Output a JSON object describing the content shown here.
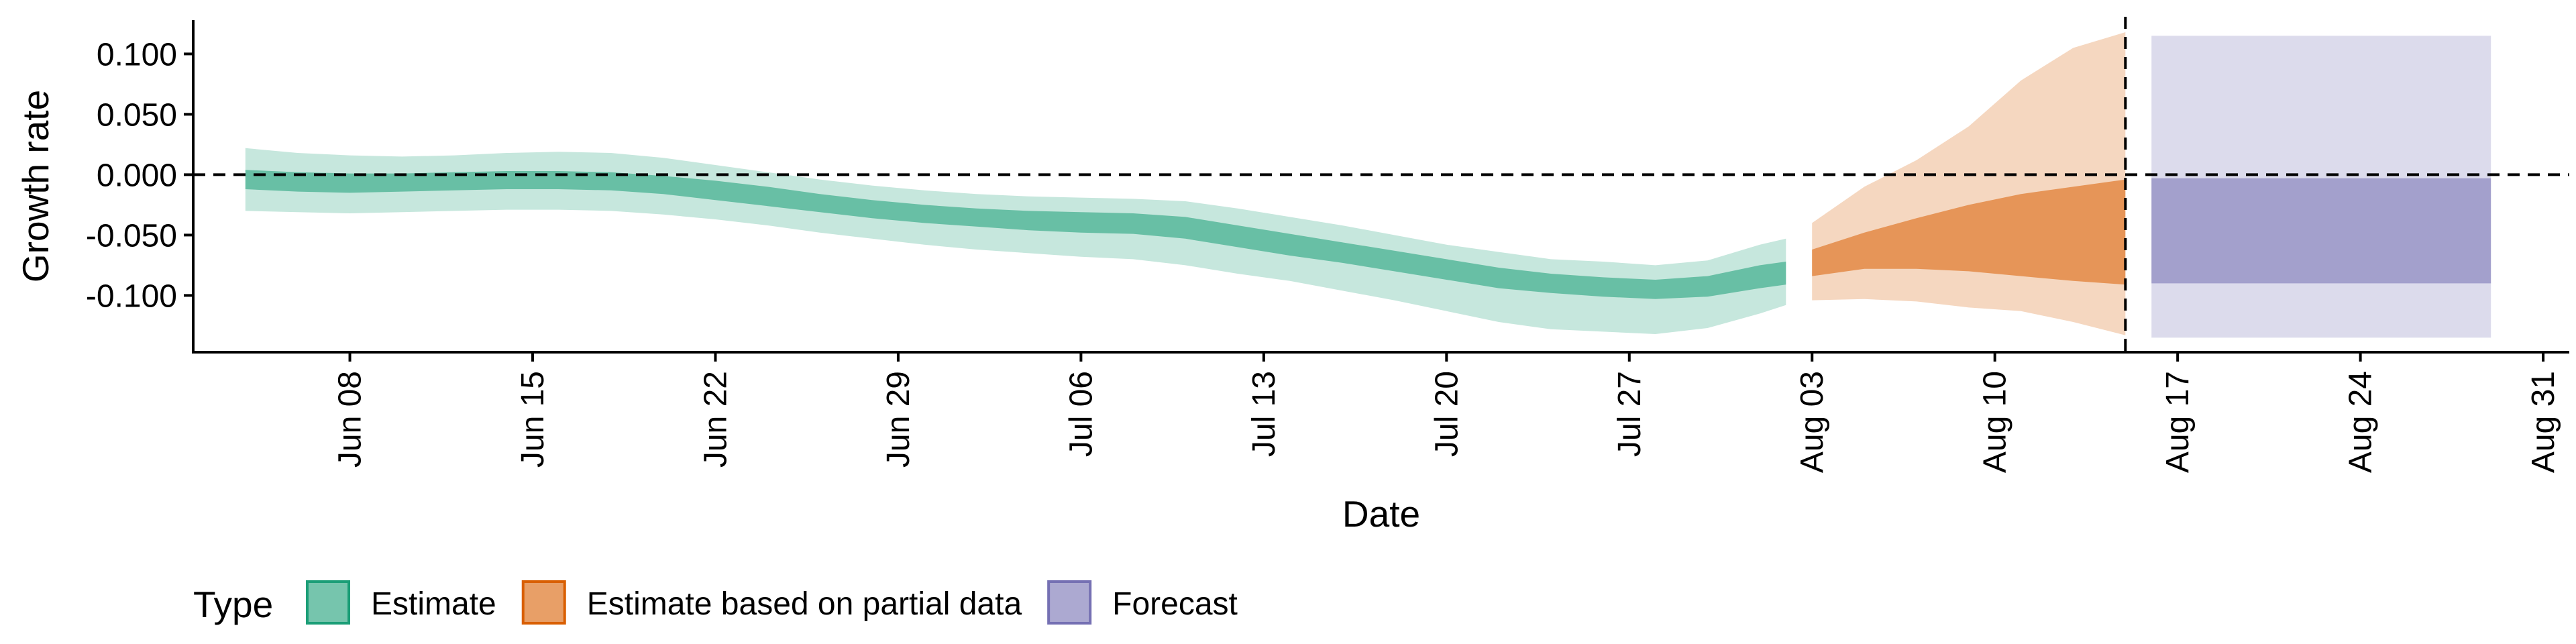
{
  "chart_data": {
    "type": "area",
    "title": "",
    "xlabel": "Date",
    "ylabel": "Growth rate",
    "x_axis_type": "date",
    "xlim": [
      "2022-06-02",
      "2022-09-01"
    ],
    "ylim": [
      -0.147,
      0.128
    ],
    "x_ticks": [
      {
        "date": "2022-06-08",
        "label": "Jun 08"
      },
      {
        "date": "2022-06-15",
        "label": "Jun 15"
      },
      {
        "date": "2022-06-22",
        "label": "Jun 22"
      },
      {
        "date": "2022-06-29",
        "label": "Jun 29"
      },
      {
        "date": "2022-07-06",
        "label": "Jul 06"
      },
      {
        "date": "2022-07-13",
        "label": "Jul 13"
      },
      {
        "date": "2022-07-20",
        "label": "Jul 20"
      },
      {
        "date": "2022-07-27",
        "label": "Jul 27"
      },
      {
        "date": "2022-08-03",
        "label": "Aug 03"
      },
      {
        "date": "2022-08-10",
        "label": "Aug 10"
      },
      {
        "date": "2022-08-17",
        "label": "Aug 17"
      },
      {
        "date": "2022-08-24",
        "label": "Aug 24"
      },
      {
        "date": "2022-08-31",
        "label": "Aug 31"
      }
    ],
    "y_ticks": [
      {
        "value": 0.1,
        "label": "0.100"
      },
      {
        "value": 0.05,
        "label": "0.050"
      },
      {
        "value": 0.0,
        "label": "0.000"
      },
      {
        "value": -0.05,
        "label": "-0.050"
      },
      {
        "value": -0.1,
        "label": "-0.100"
      }
    ],
    "reference_lines": [
      {
        "axis": "y",
        "value": 0.0,
        "style": "dashed"
      },
      {
        "axis": "x",
        "value": "2022-08-15",
        "style": "dashed"
      }
    ],
    "grid": false,
    "legend": {
      "title": "Type",
      "position": "bottom-left",
      "entries": [
        "Estimate",
        "Estimate based on partial data",
        "Forecast"
      ]
    },
    "series": [
      {
        "name": "Estimate",
        "color": "#1B9E77",
        "columns": [
          "date",
          "outer_lower",
          "inner_lower",
          "inner_upper",
          "outer_upper"
        ],
        "data": [
          [
            "2022-06-04",
            -0.03,
            -0.012,
            0.004,
            0.022
          ],
          [
            "2022-06-06",
            -0.031,
            -0.014,
            0.002,
            0.018
          ],
          [
            "2022-06-08",
            -0.032,
            -0.015,
            0.001,
            0.016
          ],
          [
            "2022-06-10",
            -0.031,
            -0.014,
            0.001,
            0.015
          ],
          [
            "2022-06-12",
            -0.03,
            -0.013,
            0.002,
            0.016
          ],
          [
            "2022-06-14",
            -0.029,
            -0.012,
            0.003,
            0.018
          ],
          [
            "2022-06-16",
            -0.029,
            -0.012,
            0.003,
            0.019
          ],
          [
            "2022-06-18",
            -0.03,
            -0.013,
            0.002,
            0.018
          ],
          [
            "2022-06-20",
            -0.033,
            -0.016,
            -0.001,
            0.014
          ],
          [
            "2022-06-22",
            -0.037,
            -0.021,
            -0.005,
            0.008
          ],
          [
            "2022-06-24",
            -0.042,
            -0.026,
            -0.01,
            0.002
          ],
          [
            "2022-06-26",
            -0.048,
            -0.031,
            -0.016,
            -0.004
          ],
          [
            "2022-06-28",
            -0.053,
            -0.036,
            -0.021,
            -0.009
          ],
          [
            "2022-06-30",
            -0.058,
            -0.04,
            -0.025,
            -0.013
          ],
          [
            "2022-07-02",
            -0.062,
            -0.043,
            -0.028,
            -0.016
          ],
          [
            "2022-07-04",
            -0.065,
            -0.046,
            -0.03,
            -0.018
          ],
          [
            "2022-07-06",
            -0.068,
            -0.048,
            -0.031,
            -0.019
          ],
          [
            "2022-07-08",
            -0.07,
            -0.049,
            -0.032,
            -0.02
          ],
          [
            "2022-07-10",
            -0.075,
            -0.053,
            -0.035,
            -0.022
          ],
          [
            "2022-07-12",
            -0.082,
            -0.06,
            -0.042,
            -0.028
          ],
          [
            "2022-07-14",
            -0.088,
            -0.067,
            -0.049,
            -0.035
          ],
          [
            "2022-07-16",
            -0.096,
            -0.073,
            -0.056,
            -0.042
          ],
          [
            "2022-07-18",
            -0.104,
            -0.08,
            -0.063,
            -0.05
          ],
          [
            "2022-07-20",
            -0.113,
            -0.087,
            -0.07,
            -0.058
          ],
          [
            "2022-07-22",
            -0.122,
            -0.094,
            -0.077,
            -0.064
          ],
          [
            "2022-07-24",
            -0.128,
            -0.098,
            -0.082,
            -0.07
          ],
          [
            "2022-07-26",
            -0.13,
            -0.101,
            -0.085,
            -0.072
          ],
          [
            "2022-07-28",
            -0.132,
            -0.103,
            -0.087,
            -0.075
          ],
          [
            "2022-07-30",
            -0.127,
            -0.101,
            -0.084,
            -0.071
          ],
          [
            "2022-08-01",
            -0.115,
            -0.094,
            -0.075,
            -0.058
          ],
          [
            "2022-08-02",
            -0.108,
            -0.091,
            -0.072,
            -0.053
          ]
        ]
      },
      {
        "name": "Estimate based on partial data",
        "color": "#D95F02",
        "columns": [
          "date",
          "outer_lower",
          "inner_lower",
          "inner_upper",
          "outer_upper"
        ],
        "data": [
          [
            "2022-08-03",
            -0.104,
            -0.084,
            -0.062,
            -0.04
          ],
          [
            "2022-08-05",
            -0.103,
            -0.078,
            -0.048,
            -0.01
          ],
          [
            "2022-08-07",
            -0.105,
            -0.078,
            -0.036,
            0.012
          ],
          [
            "2022-08-09",
            -0.11,
            -0.08,
            -0.025,
            0.04
          ],
          [
            "2022-08-11",
            -0.113,
            -0.084,
            -0.016,
            0.078
          ],
          [
            "2022-08-13",
            -0.122,
            -0.088,
            -0.01,
            0.105
          ],
          [
            "2022-08-15",
            -0.133,
            -0.091,
            -0.004,
            0.118
          ]
        ]
      },
      {
        "name": "Forecast",
        "color": "#7570B3",
        "columns": [
          "date",
          "outer_lower",
          "inner_lower",
          "inner_upper",
          "outer_upper"
        ],
        "data": [
          [
            "2022-08-16",
            -0.135,
            -0.09,
            -0.003,
            0.115
          ],
          [
            "2022-08-29",
            -0.135,
            -0.09,
            -0.003,
            0.115
          ]
        ]
      }
    ]
  }
}
